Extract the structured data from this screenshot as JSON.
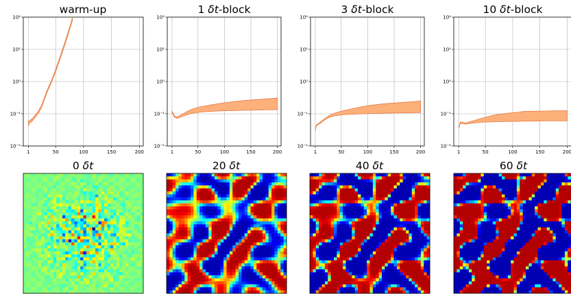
{
  "chart_data": [
    {
      "type": "area",
      "title_text": "warm-up",
      "title_symbol": "",
      "yscale": "log",
      "ylim": [
        0.01,
        100
      ],
      "xlim": [
        -8,
        207
      ],
      "xticks": [
        1,
        50,
        100,
        150,
        200
      ],
      "xtick_labels": [
        "1",
        "50",
        "100",
        "150",
        "200"
      ],
      "yticks": [
        0.01,
        0.1,
        1,
        10,
        100
      ],
      "ytick_labels": [
        "10⁻²",
        "10⁻¹",
        "10⁰",
        "10¹",
        "10²"
      ],
      "grid": true,
      "fill_color": "#fdb07a",
      "edge_color": "#e0703a",
      "x": [
        1,
        3,
        6,
        10,
        15,
        20,
        25,
        30,
        35,
        40,
        45,
        50,
        55,
        60,
        65,
        70,
        75,
        80
      ],
      "lower": [
        0.042,
        0.052,
        0.055,
        0.065,
        0.085,
        0.11,
        0.16,
        0.28,
        0.48,
        0.75,
        1.2,
        2.0,
        3.6,
        6.4,
        11.5,
        21,
        40,
        78
      ],
      "upper": [
        0.058,
        0.062,
        0.066,
        0.077,
        0.098,
        0.13,
        0.19,
        0.33,
        0.56,
        0.88,
        1.4,
        2.4,
        4.3,
        7.7,
        14,
        26,
        49,
        96
      ]
    },
    {
      "type": "area",
      "title_text": "1 ",
      "title_symbol": "δt",
      "title_suffix": "-block",
      "yscale": "log",
      "ylim": [
        0.01,
        100
      ],
      "xlim": [
        -8,
        207
      ],
      "xticks": [
        1,
        50,
        100,
        150,
        200
      ],
      "xtick_labels": [
        "1",
        "50",
        "100",
        "150",
        "200"
      ],
      "yticks": [
        0.01,
        0.1,
        1,
        10,
        100
      ],
      "ytick_labels": [
        "10⁻²",
        "10⁻¹",
        "10⁰",
        "10¹",
        "10²"
      ],
      "grid": true,
      "fill_color": "#fdb07a",
      "edge_color": "#e0703a",
      "x": [
        1,
        3,
        6,
        10,
        15,
        20,
        30,
        40,
        50,
        60,
        80,
        100,
        120,
        140,
        160,
        180,
        200
      ],
      "lower": [
        0.11,
        0.095,
        0.078,
        0.072,
        0.076,
        0.082,
        0.094,
        0.104,
        0.11,
        0.115,
        0.12,
        0.124,
        0.126,
        0.128,
        0.13,
        0.132,
        0.134
      ],
      "upper": [
        0.12,
        0.105,
        0.085,
        0.08,
        0.086,
        0.096,
        0.118,
        0.14,
        0.158,
        0.172,
        0.195,
        0.22,
        0.24,
        0.26,
        0.275,
        0.29,
        0.31
      ]
    },
    {
      "type": "area",
      "title_text": "3 ",
      "title_symbol": "δt",
      "title_suffix": "-block",
      "yscale": "log",
      "ylim": [
        0.01,
        100
      ],
      "xlim": [
        -8,
        207
      ],
      "xticks": [
        1,
        50,
        100,
        150,
        200
      ],
      "xtick_labels": [
        "1",
        "50",
        "100",
        "150",
        "200"
      ],
      "yticks": [
        0.01,
        0.1,
        1,
        10,
        100
      ],
      "ytick_labels": [
        "10⁻²",
        "10⁻¹",
        "10⁰",
        "10¹",
        "10²"
      ],
      "grid": true,
      "fill_color": "#fdb07a",
      "edge_color": "#e0703a",
      "x": [
        1,
        3,
        6,
        10,
        15,
        20,
        25,
        30,
        40,
        50,
        60,
        80,
        100,
        120,
        140,
        160,
        180,
        200
      ],
      "lower": [
        0.03,
        0.042,
        0.046,
        0.05,
        0.058,
        0.066,
        0.074,
        0.08,
        0.088,
        0.092,
        0.095,
        0.098,
        0.101,
        0.103,
        0.105,
        0.106,
        0.107,
        0.108
      ],
      "upper": [
        0.032,
        0.045,
        0.049,
        0.054,
        0.063,
        0.073,
        0.083,
        0.093,
        0.108,
        0.12,
        0.132,
        0.155,
        0.178,
        0.196,
        0.21,
        0.222,
        0.235,
        0.25
      ]
    },
    {
      "type": "area",
      "title_text": "10 ",
      "title_symbol": "δt",
      "title_suffix": "-block",
      "yscale": "log",
      "ylim": [
        0.01,
        100
      ],
      "xlim": [
        -8,
        207
      ],
      "xticks": [
        1,
        50,
        100,
        150,
        200
      ],
      "xtick_labels": [
        "1",
        "50",
        "100",
        "150",
        "200"
      ],
      "yticks": [
        0.01,
        0.1,
        1,
        10,
        100
      ],
      "ytick_labels": [
        "10⁻²",
        "10⁻¹",
        "10⁰",
        "10¹",
        "10²"
      ],
      "grid": true,
      "fill_color": "#fdb07a",
      "edge_color": "#e0703a",
      "x": [
        1,
        4,
        8,
        12,
        16,
        20,
        30,
        40,
        50,
        60,
        70,
        80,
        90,
        100,
        110,
        120,
        140,
        160,
        180,
        200
      ],
      "lower": [
        0.035,
        0.05,
        0.05,
        0.048,
        0.048,
        0.05,
        0.052,
        0.054,
        0.055,
        0.056,
        0.057,
        0.057,
        0.058,
        0.058,
        0.058,
        0.059,
        0.059,
        0.06,
        0.06,
        0.06
      ],
      "upper": [
        0.036,
        0.056,
        0.055,
        0.052,
        0.053,
        0.056,
        0.062,
        0.07,
        0.078,
        0.086,
        0.094,
        0.098,
        0.103,
        0.108,
        0.112,
        0.118,
        0.12,
        0.122,
        0.124,
        0.125
      ]
    },
    {
      "type": "heatmap",
      "title_text": "0 ",
      "title_symbol": "δt",
      "colormap": "jet"
    },
    {
      "type": "heatmap",
      "title_text": "20 ",
      "title_symbol": "δt",
      "colormap": "jet"
    },
    {
      "type": "heatmap",
      "title_text": "40 ",
      "title_symbol": "δt",
      "colormap": "jet"
    },
    {
      "type": "heatmap",
      "title_text": "60 ",
      "title_symbol": "δt",
      "colormap": "jet"
    }
  ]
}
